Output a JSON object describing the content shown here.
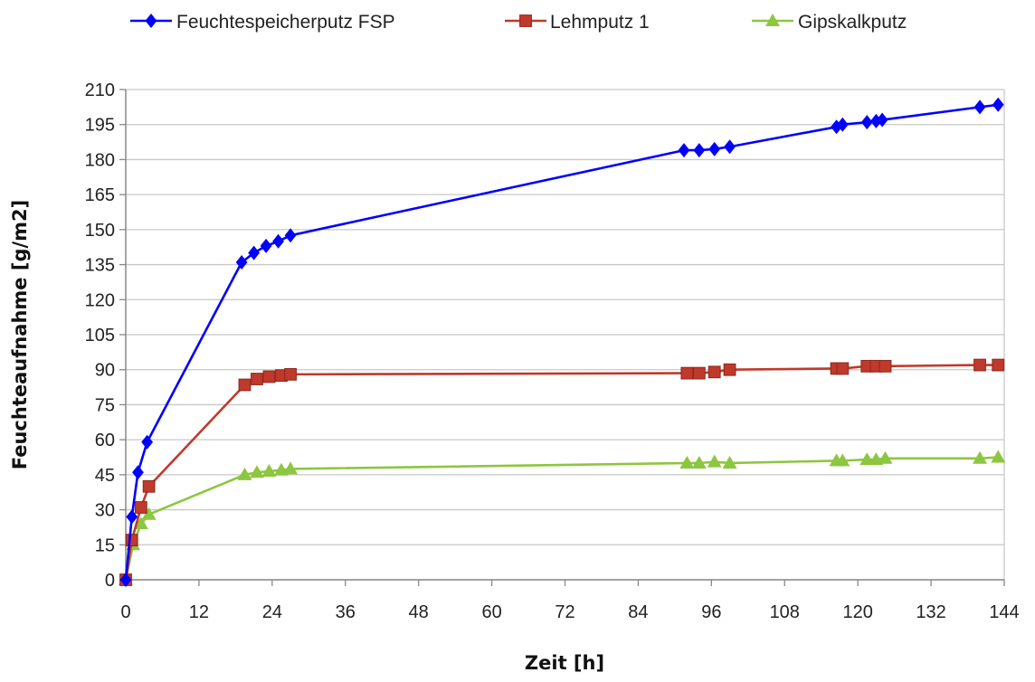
{
  "chart_data": {
    "type": "line",
    "title": "",
    "xlabel": "Zeit [h]",
    "ylabel": "Feuchteaufnahme [g/m2]",
    "xlim": [
      0,
      144
    ],
    "ylim": [
      0,
      210
    ],
    "xticks": [
      0,
      12,
      24,
      36,
      48,
      60,
      72,
      84,
      96,
      108,
      120,
      132,
      144
    ],
    "yticks": [
      0,
      15,
      30,
      45,
      60,
      75,
      90,
      105,
      120,
      135,
      150,
      165,
      180,
      195,
      210
    ],
    "grid": "horizontal",
    "legend_position": "top",
    "series": [
      {
        "name": "Feuchtespeicherputz FSP",
        "color": "#0000ff",
        "marker": "diamond",
        "x": [
          0,
          1,
          2,
          3.5,
          19,
          21,
          23,
          25,
          27,
          91.5,
          94,
          96.5,
          99,
          116.5,
          117.5,
          121.5,
          123,
          124,
          140,
          143
        ],
        "y": [
          0,
          27,
          46,
          59,
          136,
          140,
          143,
          145,
          147.5,
          184,
          184,
          184.5,
          185.5,
          194,
          195,
          196,
          196.5,
          197,
          202.5,
          203.5
        ]
      },
      {
        "name": "Lehmputz 1",
        "color": "#c0392b",
        "marker": "square",
        "x": [
          0,
          1,
          2.5,
          3.8,
          19.5,
          21.5,
          23.5,
          25.5,
          27,
          92,
          94,
          96.5,
          99,
          116.5,
          117.5,
          121.5,
          123,
          124.5,
          140,
          143
        ],
        "y": [
          0,
          17,
          31,
          40,
          83.5,
          86,
          87,
          87.5,
          88,
          88.5,
          88.5,
          89,
          90,
          90.5,
          90.5,
          91.5,
          91.5,
          91.5,
          92,
          92
        ]
      },
      {
        "name": "Gipskalkputz",
        "color": "#8dc63f",
        "marker": "triangle",
        "x": [
          0,
          1.2,
          2.5,
          3.8,
          19.5,
          21.5,
          23.5,
          25.5,
          27,
          92,
          94,
          96.5,
          99,
          116.5,
          117.5,
          121.5,
          123,
          124.5,
          140,
          143
        ],
        "y": [
          0,
          15,
          24,
          28,
          45,
          46,
          46.5,
          47,
          47.5,
          50,
          50,
          50.5,
          50,
          51,
          51,
          51.5,
          51.5,
          52,
          52,
          52.5
        ]
      }
    ]
  }
}
